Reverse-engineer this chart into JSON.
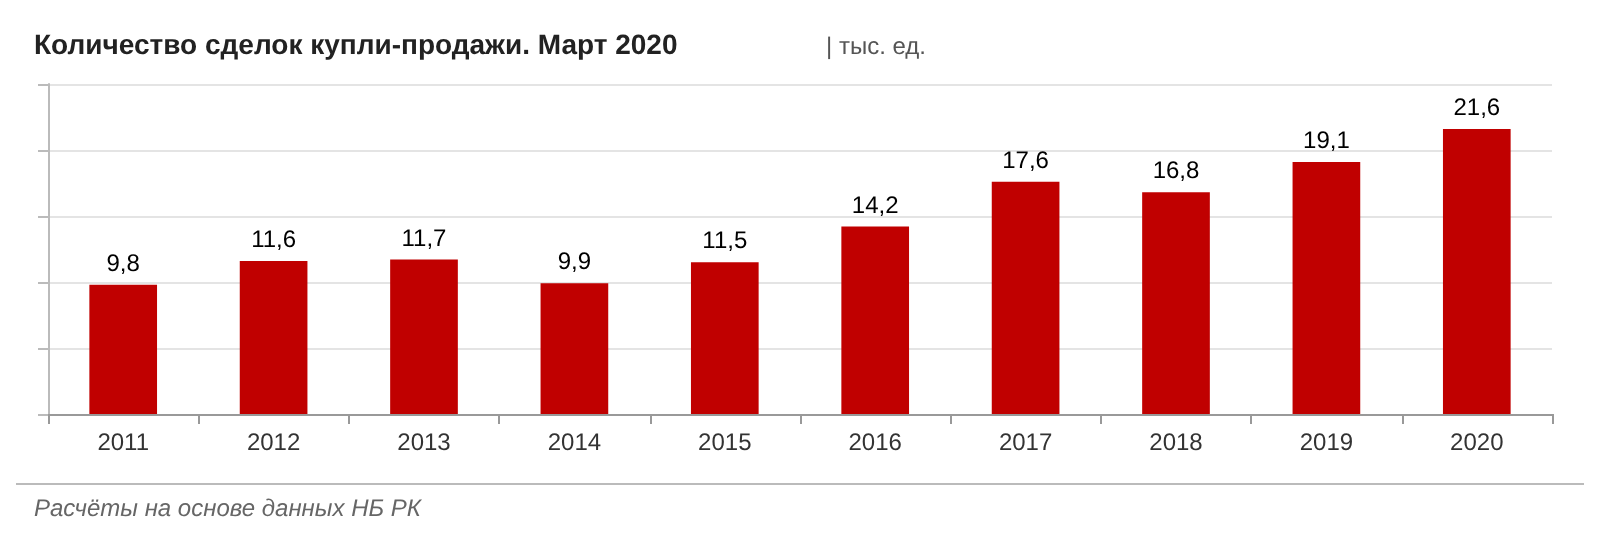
{
  "chart_data": {
    "type": "bar",
    "title": "Количество сделок купли-продажи. Март 2020",
    "subtitle": "| тыс. ед.",
    "categories": [
      "2011",
      "2012",
      "2013",
      "2014",
      "2015",
      "2016",
      "2017",
      "2018",
      "2019",
      "2020"
    ],
    "values": [
      9.8,
      11.6,
      11.7,
      9.9,
      11.5,
      14.2,
      17.6,
      16.8,
      19.1,
      21.6
    ],
    "color": "#c00000",
    "value_labels": [
      "9,8",
      "11,6",
      "11,7",
      "9,9",
      "11,5",
      "14,2",
      "17,6",
      "16,8",
      "19,1",
      "21,6"
    ],
    "tick_labels": "x",
    "grid": "y",
    "annotations": [
      "Расчёты на основе данных НБ РК"
    ]
  }
}
